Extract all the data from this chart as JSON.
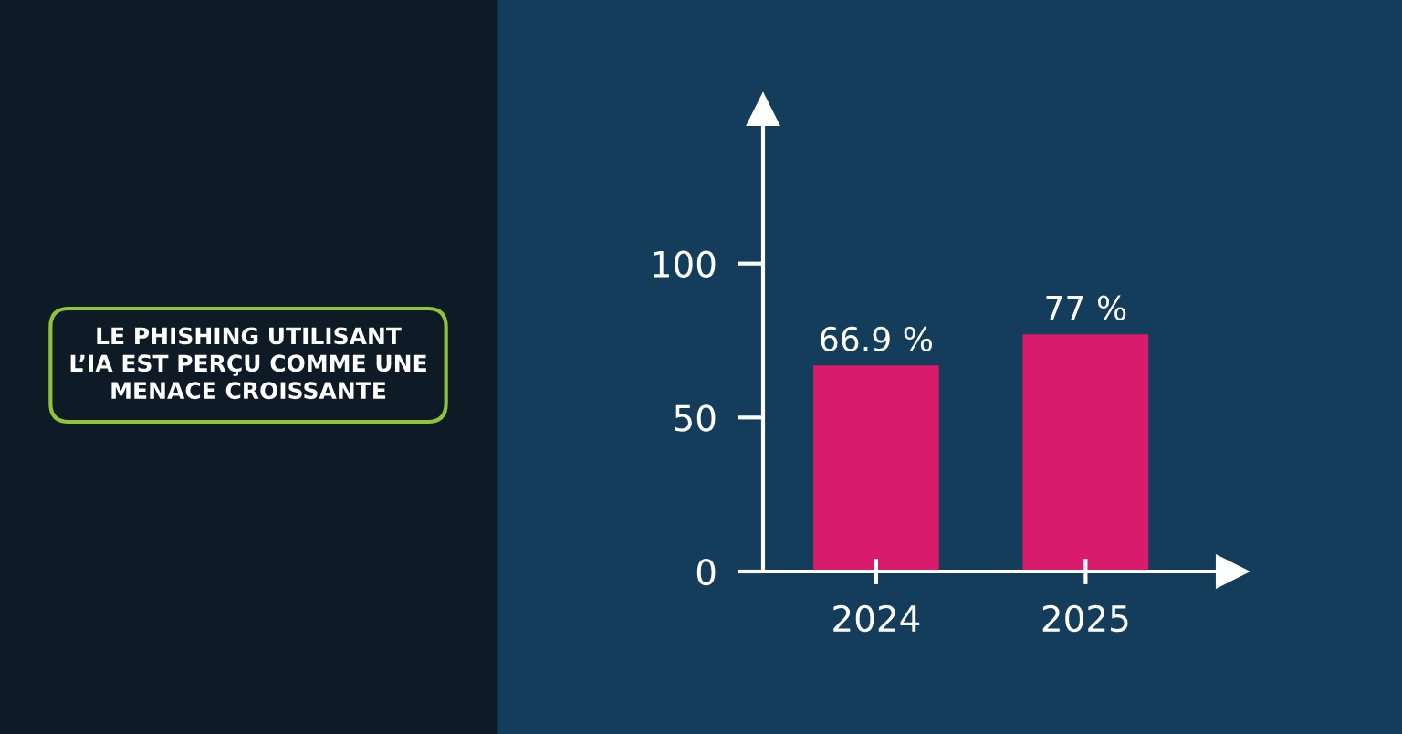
{
  "chart_data": {
    "type": "bar",
    "title": "LE PHISHING UTILISANT\nL’IA EST PERÇU COMME UNE\nMENACE CROISSANTE",
    "categories": [
      "2024",
      "2025"
    ],
    "values": [
      66.9,
      77
    ],
    "value_labels": [
      "66.9 %",
      "77 %"
    ],
    "color": "#d81b6a",
    "ylim": [
      0,
      150
    ],
    "yticks": [
      0,
      50,
      100
    ],
    "grid": false,
    "legend": false
  }
}
